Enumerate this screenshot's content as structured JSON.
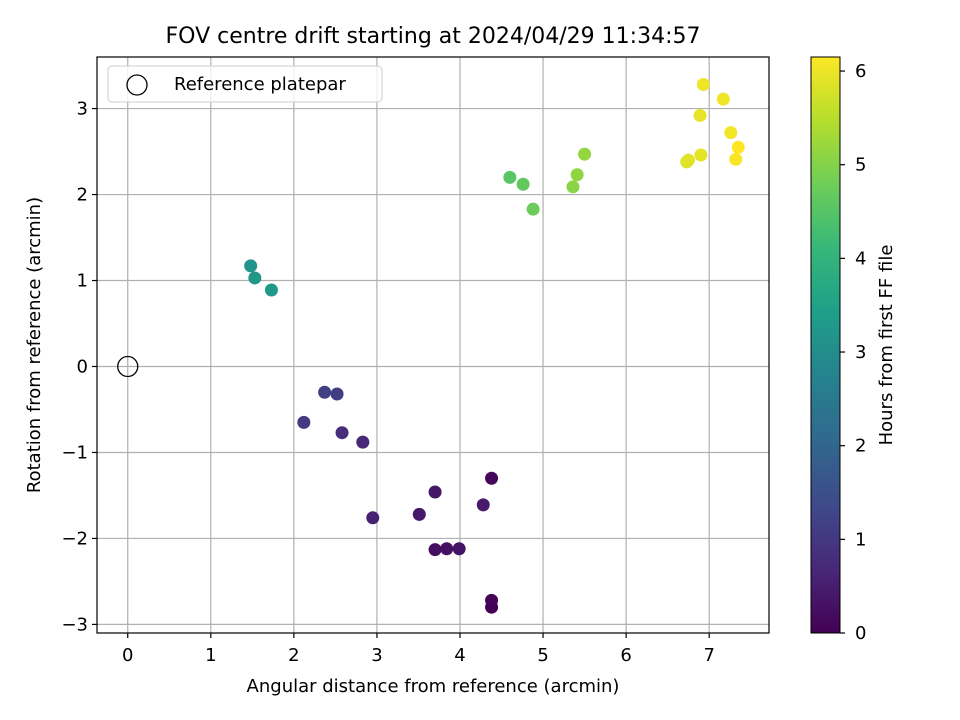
{
  "chart_data": {
    "type": "scatter",
    "title": "FOV centre drift starting at 2024/04/29 11:34:57",
    "xlabel": "Angular distance from reference (arcmin)",
    "ylabel": "Rotation from reference (arcmin)",
    "xlim": [
      -0.37,
      7.72
    ],
    "ylim": [
      -3.1,
      3.6
    ],
    "xticks": [
      0,
      1,
      2,
      3,
      4,
      5,
      6,
      7
    ],
    "yticks": [
      -3,
      -2,
      -1,
      0,
      1,
      2,
      3
    ],
    "grid": true,
    "legend": {
      "placement": "top-left",
      "entries": [
        "Reference platepar"
      ]
    },
    "reference_point": {
      "x": 0,
      "y": 0,
      "label": "Reference platepar"
    },
    "colorbar": {
      "label": "Hours from first FF file",
      "colormap": "viridis",
      "range": [
        0,
        6.15
      ],
      "ticks": [
        0,
        1,
        2,
        3,
        4,
        5,
        6
      ]
    },
    "points": [
      {
        "x": 4.38,
        "y": -2.8,
        "c": 0.0
      },
      {
        "x": 4.38,
        "y": -2.72,
        "c": 0.05
      },
      {
        "x": 4.38,
        "y": -1.3,
        "c": 0.1
      },
      {
        "x": 3.7,
        "y": -2.13,
        "c": 0.22
      },
      {
        "x": 3.84,
        "y": -2.12,
        "c": 0.26
      },
      {
        "x": 3.99,
        "y": -2.12,
        "c": 0.3
      },
      {
        "x": 3.7,
        "y": -1.46,
        "c": 0.36
      },
      {
        "x": 3.51,
        "y": -1.72,
        "c": 0.4
      },
      {
        "x": 4.28,
        "y": -1.61,
        "c": 0.44
      },
      {
        "x": 2.95,
        "y": -1.76,
        "c": 0.55
      },
      {
        "x": 2.83,
        "y": -0.88,
        "c": 0.7
      },
      {
        "x": 2.58,
        "y": -0.77,
        "c": 0.78
      },
      {
        "x": 2.12,
        "y": -0.65,
        "c": 1.05
      },
      {
        "x": 2.52,
        "y": -0.32,
        "c": 1.12
      },
      {
        "x": 2.37,
        "y": -0.3,
        "c": 1.18
      },
      {
        "x": 1.48,
        "y": 1.17,
        "c": 3.2
      },
      {
        "x": 1.53,
        "y": 1.03,
        "c": 3.25
      },
      {
        "x": 1.73,
        "y": 0.89,
        "c": 3.3
      },
      {
        "x": 4.6,
        "y": 2.2,
        "c": 4.55
      },
      {
        "x": 4.76,
        "y": 2.12,
        "c": 4.65
      },
      {
        "x": 4.88,
        "y": 1.83,
        "c": 4.75
      },
      {
        "x": 5.36,
        "y": 2.09,
        "c": 5.05
      },
      {
        "x": 5.41,
        "y": 2.23,
        "c": 5.1
      },
      {
        "x": 5.5,
        "y": 2.47,
        "c": 5.15
      },
      {
        "x": 6.73,
        "y": 2.38,
        "c": 5.85
      },
      {
        "x": 6.75,
        "y": 2.4,
        "c": 5.88
      },
      {
        "x": 6.9,
        "y": 2.46,
        "c": 5.92
      },
      {
        "x": 6.89,
        "y": 2.92,
        "c": 5.95
      },
      {
        "x": 6.93,
        "y": 3.28,
        "c": 6.0
      },
      {
        "x": 7.17,
        "y": 3.11,
        "c": 6.03
      },
      {
        "x": 7.26,
        "y": 2.72,
        "c": 6.06
      },
      {
        "x": 7.32,
        "y": 2.41,
        "c": 6.1
      },
      {
        "x": 7.35,
        "y": 2.55,
        "c": 6.15
      }
    ]
  }
}
